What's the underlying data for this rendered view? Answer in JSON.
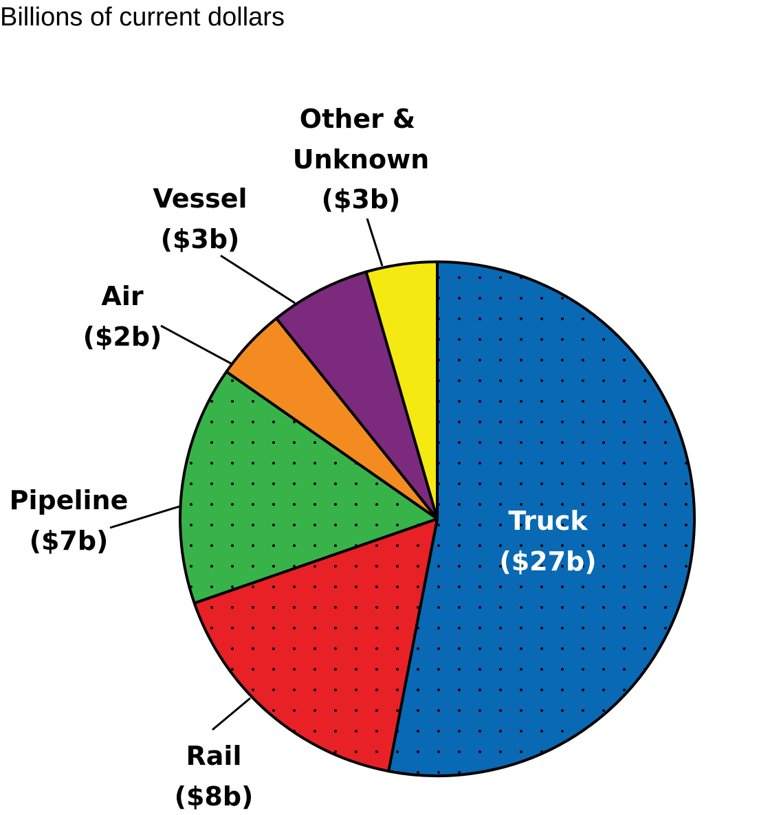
{
  "chart_data": {
    "type": "pie",
    "title": "Billions of current dollars",
    "unit": "Billions of current dollars",
    "slices": [
      {
        "name": "Truck",
        "value_label": "($27b)",
        "value": 27,
        "share": 0.5303,
        "color": "#0969b4",
        "dotted": true,
        "label_color": "#ffffff"
      },
      {
        "name": "Rail",
        "value_label": "($8b)",
        "value": 8,
        "share": 0.1665,
        "color": "#e82127",
        "dotted": true,
        "label_color": "#000000"
      },
      {
        "name": "Pipeline",
        "value_label": "($7b)",
        "value": 7,
        "share": 0.1502,
        "color": "#37b34a",
        "dotted": true,
        "label_color": "#000000"
      },
      {
        "name": "Air",
        "value_label": "($2b)",
        "value": 2,
        "share": 0.0454,
        "color": "#f48b21",
        "dotted": false,
        "label_color": "#000000"
      },
      {
        "name": "Vessel",
        "value_label": "($3b)",
        "value": 3,
        "share": 0.063,
        "color": "#7c2a7e",
        "dotted": false,
        "label_color": "#000000"
      },
      {
        "name": "Other & Unknown",
        "value_label": "($3b)",
        "value": 3,
        "share": 0.0446,
        "color": "#f4e911",
        "dotted": false,
        "label_color": "#000000"
      }
    ]
  }
}
